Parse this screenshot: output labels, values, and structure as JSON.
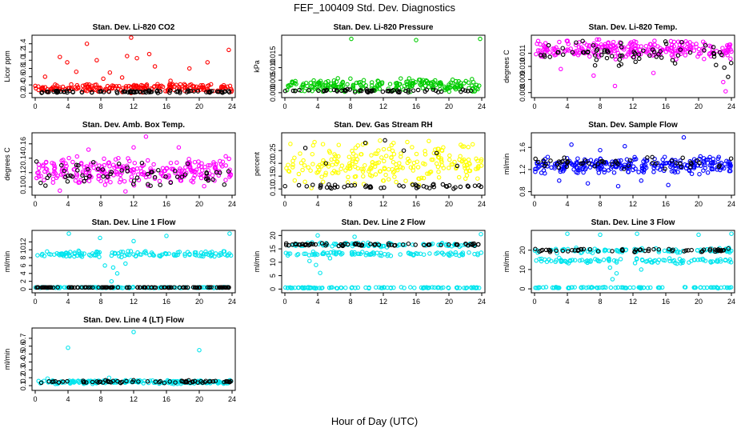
{
  "figure": {
    "title": "FEF_100409  Std. Dev. Diagnostics",
    "xlabel": "Hour of Day (UTC)"
  },
  "colors": {
    "red": "#ff0000",
    "green": "#00cc00",
    "magenta": "#ff00ff",
    "yellow": "#ffff00",
    "blue": "#0000ff",
    "cyan": "#00e5ee",
    "black": "#000000"
  },
  "chart_data": [
    {
      "type": "scatter",
      "title": "Stan. Dev. Li-820 CO2",
      "ylabel": "Licor ppm",
      "xticks": [
        "0",
        "4",
        "8",
        "12",
        "16",
        "20",
        "24"
      ],
      "yticks": [
        "0.2",
        "0.4",
        "0.6",
        "0.8",
        "1.0",
        "1.2",
        "1.4"
      ],
      "xlim": [
        0,
        24
      ],
      "ylim": [
        0.15,
        1.55
      ],
      "series": [
        {
          "color": "red",
          "bands": [
            {
              "lo": 0.2,
              "hi": 0.45
            }
          ],
          "count": 200,
          "points": [
            [
              6.3,
              1.4
            ],
            [
              11.7,
              1.55
            ],
            [
              3.0,
              1.08
            ],
            [
              3.9,
              0.95
            ],
            [
              7.5,
              1.0
            ],
            [
              11.2,
              1.1
            ],
            [
              12.4,
              1.05
            ],
            [
              13.9,
              1.15
            ],
            [
              14.6,
              0.85
            ],
            [
              18.8,
              0.8
            ],
            [
              21.0,
              0.95
            ],
            [
              23.6,
              1.25
            ],
            [
              5.0,
              0.72
            ],
            [
              9.1,
              0.7
            ],
            [
              10.6,
              0.58
            ],
            [
              1.2,
              0.6
            ],
            [
              16.5,
              0.5
            ],
            [
              8.3,
              0.55
            ]
          ]
        },
        {
          "color": "black",
          "bands": [
            {
              "lo": 0.2,
              "hi": 0.27
            }
          ],
          "count": 90,
          "points": []
        }
      ]
    },
    {
      "type": "scatter",
      "title": "Stan. Dev. Li-820 Pressure",
      "ylabel": "kPa",
      "xticks": [
        "0",
        "4",
        "8",
        "12",
        "16",
        "20",
        "24"
      ],
      "yticks": [
        "0.000",
        "0.005",
        "0.010",
        "0.015"
      ],
      "xlim": [
        0,
        24
      ],
      "ylim": [
        -0.001,
        0.022
      ],
      "series": [
        {
          "color": "green",
          "bands": [
            {
              "lo": 0.0,
              "hi": 0.006
            }
          ],
          "count": 220,
          "points": [
            [
              8.1,
              0.0215
            ],
            [
              16.0,
              0.021
            ],
            [
              23.8,
              0.0215
            ]
          ]
        },
        {
          "color": "black",
          "bands": [
            {
              "lo": 0.0,
              "hi": 0.0015
            }
          ],
          "count": 60,
          "points": []
        }
      ]
    },
    {
      "type": "scatter",
      "title": "Stan. Dev. Li-820 Temp.",
      "ylabel": "degrees C",
      "xticks": [
        "0",
        "4",
        "8",
        "12",
        "16",
        "20",
        "24"
      ],
      "yticks": [
        "0.008",
        "0.009",
        "0.010",
        "0.011"
      ],
      "xlim": [
        0,
        24
      ],
      "ylim": [
        0.0078,
        0.0122
      ],
      "series": [
        {
          "color": "magenta",
          "bands": [
            {
              "lo": 0.0105,
              "hi": 0.0121
            }
          ],
          "count": 260,
          "points": [
            [
              9.8,
              0.0085
            ],
            [
              23.3,
              0.0081
            ],
            [
              23.0,
              0.0088
            ],
            [
              7.2,
              0.0093
            ],
            [
              14.5,
              0.0095
            ],
            [
              3.2,
              0.0098
            ]
          ]
        },
        {
          "color": "black",
          "bands": [
            {
              "lo": 0.0098,
              "hi": 0.0121
            }
          ],
          "count": 70,
          "points": [
            [
              23.6,
              0.0092
            ]
          ]
        }
      ]
    },
    {
      "type": "scatter",
      "title": "Stan. Dev. Amb. Box Temp.",
      "ylabel": "degrees C",
      "xticks": [
        "0",
        "4",
        "8",
        "12",
        "16",
        "20",
        "24"
      ],
      "yticks": [
        "0.10",
        "0.12",
        "0.14",
        "0.16"
      ],
      "xlim": [
        0,
        24
      ],
      "ylim": [
        0.092,
        0.172
      ],
      "series": [
        {
          "color": "magenta",
          "bands": [
            {
              "lo": 0.1,
              "hi": 0.145
            }
          ],
          "count": 260,
          "points": [
            [
              13.5,
              0.17
            ],
            [
              12.0,
              0.155
            ],
            [
              17.5,
              0.155
            ],
            [
              6.5,
              0.152
            ],
            [
              3.0,
              0.095
            ],
            [
              11.0,
              0.094
            ]
          ]
        },
        {
          "color": "black",
          "bands": [
            {
              "lo": 0.1,
              "hi": 0.14
            }
          ],
          "count": 60,
          "points": []
        }
      ]
    },
    {
      "type": "scatter",
      "title": "Stan. Dev. Gas Stream RH",
      "ylabel": "percent",
      "xticks": [
        "0",
        "4",
        "8",
        "12",
        "16",
        "20",
        "24"
      ],
      "yticks": [
        "0.10",
        "0.15",
        "0.20",
        "0.25"
      ],
      "xlim": [
        0,
        24
      ],
      "ylim": [
        0.085,
        0.31
      ],
      "series": [
        {
          "color": "yellow",
          "bands": [
            {
              "lo": 0.1,
              "hi": 0.3
            }
          ],
          "count": 240,
          "points": []
        },
        {
          "color": "black",
          "bands": [
            {
              "lo": 0.1,
              "hi": 0.12
            }
          ],
          "count": 50,
          "points": [
            [
              2.5,
              0.26
            ],
            [
              9.8,
              0.28
            ],
            [
              12.2,
              0.29
            ],
            [
              14.5,
              0.25
            ],
            [
              18.5,
              0.24
            ],
            [
              5.0,
              0.2
            ],
            [
              21.0,
              0.19
            ]
          ]
        }
      ]
    },
    {
      "type": "scatter",
      "title": "Stan. Dev. Sample Flow",
      "ylabel": "ml/min",
      "xticks": [
        "0",
        "4",
        "8",
        "12",
        "16",
        "20",
        "24"
      ],
      "yticks": [
        "0.8",
        "1.2",
        "1.6"
      ],
      "xlim": [
        0,
        24
      ],
      "ylim": [
        0.78,
        1.82
      ],
      "series": [
        {
          "color": "blue",
          "bands": [
            {
              "lo": 1.1,
              "hi": 1.45
            }
          ],
          "count": 260,
          "points": [
            [
              18.2,
              1.78
            ],
            [
              4.5,
              1.65
            ],
            [
              11.0,
              1.62
            ],
            [
              6.5,
              0.95
            ],
            [
              10.2,
              0.9
            ],
            [
              16.3,
              0.92
            ],
            [
              3.0,
              1.0
            ],
            [
              13.0,
              1.0
            ],
            [
              8.0,
              1.55
            ]
          ]
        },
        {
          "color": "black",
          "bands": [
            {
              "lo": 1.2,
              "hi": 1.45
            }
          ],
          "count": 50,
          "points": []
        }
      ]
    },
    {
      "type": "scatter",
      "title": "Stan. Dev. Line 1 Flow",
      "ylabel": "ml/min",
      "xticks": [
        "0",
        "4",
        "8",
        "12",
        "16",
        "20",
        "24"
      ],
      "yticks": [
        "0",
        "2",
        "4",
        "6",
        "8",
        "10",
        "12"
      ],
      "xlim": [
        0,
        24
      ],
      "ylim": [
        -0.3,
        14.3
      ],
      "series": [
        {
          "color": "cyan",
          "bands": [
            {
              "lo": 8.0,
              "hi": 9.8
            },
            {
              "lo": 0.3,
              "hi": 0.6
            }
          ],
          "count": 260,
          "points": [
            [
              4.1,
              14.1
            ],
            [
              23.7,
              14.1
            ],
            [
              7.9,
              13.0
            ],
            [
              12.0,
              12.2
            ],
            [
              16.0,
              13.5
            ],
            [
              9.3,
              2.0
            ],
            [
              10.0,
              4.0
            ],
            [
              9.5,
              5.5
            ],
            [
              8.5,
              6.0
            ],
            [
              11.0,
              6.5
            ]
          ]
        },
        {
          "color": "black",
          "bands": [
            {
              "lo": 0.4,
              "hi": 0.5
            }
          ],
          "count": 110,
          "points": []
        }
      ]
    },
    {
      "type": "scatter",
      "title": "Stan. Dev. Line 2 Flow",
      "ylabel": "ml/min",
      "xticks": [
        "0",
        "4",
        "8",
        "12",
        "16",
        "20",
        "24"
      ],
      "yticks": [
        "0",
        "5",
        "10",
        "15",
        "20"
      ],
      "xlim": [
        0,
        24
      ],
      "ylim": [
        -0.5,
        21.0
      ],
      "series": [
        {
          "color": "cyan",
          "bands": [
            {
              "lo": 15.5,
              "hi": 17.5
            },
            {
              "lo": 12.3,
              "hi": 14.0
            },
            {
              "lo": 0.2,
              "hi": 0.8
            }
          ],
          "count": 280,
          "points": [
            [
              4.0,
              20.0
            ],
            [
              23.9,
              20.5
            ],
            [
              4.3,
              6.0
            ],
            [
              3.8,
              9.0
            ],
            [
              3.0,
              10.5
            ],
            [
              5.5,
              11.5
            ],
            [
              8.5,
              19.5
            ]
          ]
        },
        {
          "color": "black",
          "bands": [
            {
              "lo": 16.0,
              "hi": 17.2
            }
          ],
          "count": 70,
          "points": []
        }
      ]
    },
    {
      "type": "scatter",
      "title": "Stan. Dev. Line 3 Flow",
      "ylabel": "ml/min",
      "xticks": [
        "0",
        "4",
        "8",
        "12",
        "16",
        "20",
        "24"
      ],
      "yticks": [
        "0",
        "10",
        "20"
      ],
      "xlim": [
        0,
        24
      ],
      "ylim": [
        -0.8,
        29.0
      ],
      "series": [
        {
          "color": "cyan",
          "bands": [
            {
              "lo": 18.0,
              "hi": 21.5
            },
            {
              "lo": 13.0,
              "hi": 16.0
            },
            {
              "lo": 0.3,
              "hi": 1.0
            }
          ],
          "count": 280,
          "points": [
            [
              4.0,
              28.5
            ],
            [
              8.0,
              28.0
            ],
            [
              12.5,
              28.5
            ],
            [
              20.0,
              28.0
            ],
            [
              24.0,
              28.5
            ],
            [
              9.5,
              5.0
            ],
            [
              10.0,
              8.0
            ],
            [
              9.2,
              11.0
            ],
            [
              13.0,
              10.0
            ],
            [
              3.0,
              16.0
            ]
          ]
        },
        {
          "color": "black",
          "bands": [
            {
              "lo": 19.0,
              "hi": 21.0
            }
          ],
          "count": 60,
          "points": []
        }
      ]
    },
    {
      "type": "scatter",
      "title": "Stan. Dev. Line 4 (LT) Flow",
      "ylabel": "ml/min",
      "xticks": [
        "0",
        "4",
        "8",
        "12",
        "16",
        "20",
        "24"
      ],
      "yticks": [
        "0.1",
        "0.2",
        "0.3",
        "0.4",
        "0.5",
        "0.6",
        "0.7"
      ],
      "xlim": [
        0,
        24
      ],
      "ylim": [
        0.07,
        0.8
      ],
      "series": [
        {
          "color": "cyan",
          "bands": [
            {
              "lo": 0.12,
              "hi": 0.17
            }
          ],
          "count": 200,
          "points": [
            [
              12.0,
              0.78
            ],
            [
              4.0,
              0.58
            ],
            [
              20.0,
              0.55
            ],
            [
              1.5,
              0.19
            ],
            [
              9.0,
              0.2
            ]
          ]
        },
        {
          "color": "black",
          "bands": [
            {
              "lo": 0.13,
              "hi": 0.17
            }
          ],
          "count": 70,
          "points": []
        }
      ]
    }
  ]
}
